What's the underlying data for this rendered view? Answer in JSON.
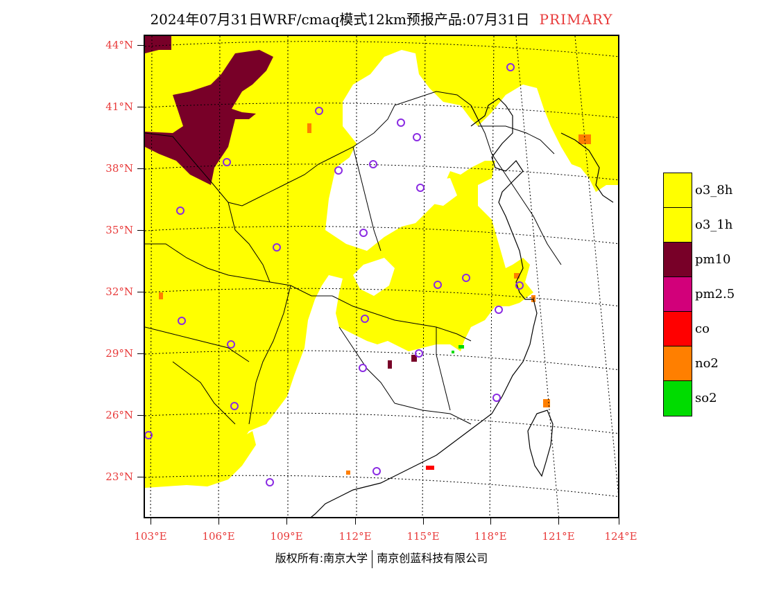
{
  "title": {
    "text": "2024年07月31日WRF/cmaq模式12km预报产品:07月31日",
    "tag": "PRIMARY"
  },
  "axes": {
    "lat_labels": [
      "44°N",
      "41°N",
      "38°N",
      "35°N",
      "32°N",
      "29°N",
      "26°N",
      "23°N"
    ],
    "lon_labels": [
      "103°E",
      "106°E",
      "109°E",
      "112°E",
      "115°E",
      "118°E",
      "121°E",
      "124°E"
    ]
  },
  "legend": [
    {
      "label": "o3_8h",
      "color": "#ffff00"
    },
    {
      "label": "o3_1h",
      "color": "#ffff00"
    },
    {
      "label": "pm10",
      "color": "#780028"
    },
    {
      "label": "pm2.5",
      "color": "#d2007a"
    },
    {
      "label": "co",
      "color": "#ff0000"
    },
    {
      "label": "no2",
      "color": "#ff7f00"
    },
    {
      "label": "so2",
      "color": "#00dc00"
    }
  ],
  "footer": {
    "left": "版权所有:南京大学",
    "right": "南京创蓝科技有限公司"
  },
  "colors": {
    "accent_red": "#e83a3a",
    "station_marker": "#8a2be2"
  }
}
